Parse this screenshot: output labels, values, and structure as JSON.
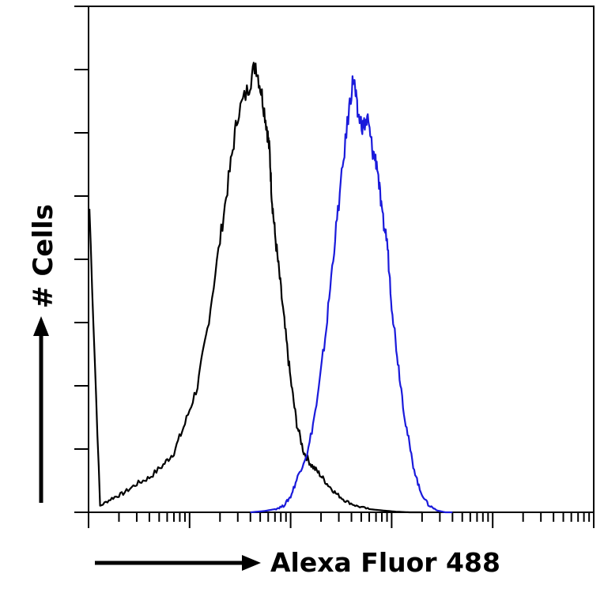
{
  "chart_data": {
    "type": "line",
    "title": "",
    "xlabel": "Alexa Fluor 488",
    "ylabel": "# Cells",
    "x_scale": "log",
    "xlim": [
      1,
      100000
    ],
    "ylim": [
      0,
      8
    ],
    "grid": false,
    "legend": "none",
    "colors": {
      "series_0": "#000000",
      "series_1": "#1a1adb",
      "axis": "#000000"
    },
    "series": [
      {
        "color": "#000000",
        "x": [
          1.02,
          1.3,
          1.7,
          2.2,
          3,
          4,
          5.5,
          7,
          9,
          12,
          15,
          20,
          25,
          30,
          38,
          45,
          52,
          58,
          62,
          65,
          70,
          78,
          88,
          100,
          115,
          135,
          160,
          190,
          230,
          280,
          350,
          450,
          600,
          800,
          1100,
          1500,
          2000
        ],
        "y": [
          4.8,
          0.1,
          0.22,
          0.3,
          0.45,
          0.55,
          0.75,
          0.95,
          1.4,
          2.0,
          2.9,
          4.3,
          5.4,
          6.3,
          6.7,
          7.1,
          6.6,
          6.1,
          5.7,
          5.0,
          4.4,
          3.7,
          2.9,
          2.1,
          1.4,
          0.95,
          0.75,
          0.62,
          0.45,
          0.3,
          0.18,
          0.1,
          0.05,
          0.03,
          0.01,
          0.0,
          0.0
        ]
      },
      {
        "color": "#1a1adb",
        "x": [
          40,
          55,
          70,
          85,
          100,
          120,
          150,
          185,
          225,
          270,
          320,
          380,
          420,
          460,
          520,
          580,
          650,
          720,
          800,
          900,
          1000,
          1150,
          1350,
          1600,
          1900,
          2300,
          2800,
          3400,
          4000
        ],
        "y": [
          0.0,
          0.02,
          0.05,
          0.1,
          0.25,
          0.6,
          1.0,
          1.8,
          2.9,
          4.2,
          5.3,
          6.4,
          6.9,
          6.3,
          6.1,
          6.2,
          5.7,
          5.5,
          4.7,
          4.3,
          3.3,
          2.4,
          1.5,
          0.8,
          0.35,
          0.12,
          0.03,
          0.0,
          0.0
        ]
      }
    ]
  }
}
